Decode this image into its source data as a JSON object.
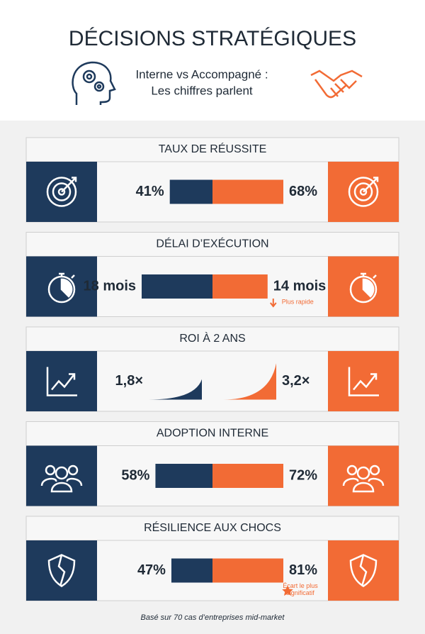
{
  "header": {
    "title": "DÉCISIONS STRATÉGIQUES",
    "subtitle_lines": [
      "Interne vs Accompagné :",
      "Les chiffres parlent"
    ]
  },
  "sections": [
    {
      "title": "TAUX DE RÉUSSITE",
      "style": "bar",
      "interne": {
        "value": 41,
        "label": "41%"
      },
      "accompagne": {
        "value": 68,
        "label": "68%"
      }
    },
    {
      "title": "DÉLAI D’EXÉCUTION",
      "style": "bar",
      "interne": {
        "value": 18,
        "label": "18 mois"
      },
      "accompagne": {
        "value": 14,
        "label": "14 mois"
      },
      "note": [
        "Plus rapide"
      ]
    },
    {
      "title": "ROI À 2 ANS",
      "style": "curve",
      "interne": {
        "value": 1.8,
        "label": "1,8×"
      },
      "accompagne": {
        "value": 3.2,
        "label": "3,2×"
      }
    },
    {
      "title": "ADOPTION INTERNE",
      "style": "bar",
      "interne": {
        "value": 58,
        "label": "58%"
      },
      "accompagne": {
        "value": 72,
        "label": "72%"
      }
    },
    {
      "title": "RÉSILIENCE AUX CHOCS",
      "style": "bar",
      "interne": {
        "value": 47,
        "label": "47%"
      },
      "accompagne": {
        "value": 81,
        "label": "81%"
      },
      "note": [
        "Écart le plus",
        "significatif"
      ]
    }
  ],
  "footnote": "Basé sur 70 cas d’entreprises mid-market"
}
